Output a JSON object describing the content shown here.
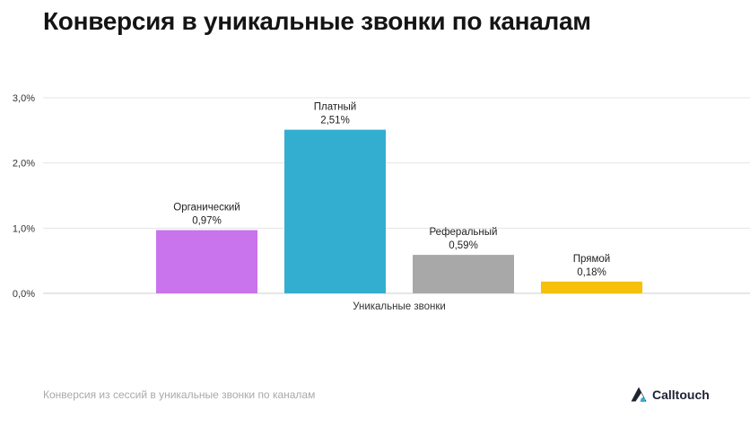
{
  "title": "Конверсия в уникальные звонки по каналам",
  "caption": "Конверсия из сессий в уникальные звонки по каналам",
  "brand": {
    "name": "Calltouch",
    "logo_icon": "calltouch-logo-icon"
  },
  "chart_data": {
    "type": "bar",
    "categories": [
      "Органический",
      "Платный",
      "Реферальный",
      "Прямой"
    ],
    "values": [
      0.97,
      2.51,
      0.59,
      0.18
    ],
    "value_labels": [
      "0,97%",
      "2,51%",
      "0,59%",
      "0,18%"
    ],
    "colors": [
      "#c973ec",
      "#33aed0",
      "#a8a8a8",
      "#f6c10a"
    ],
    "xlabel": "Уникальные звонки",
    "ylabel": "",
    "ylim": [
      0,
      3
    ],
    "yticks": [
      0,
      1,
      2,
      3
    ],
    "ytick_labels": [
      "0,0%",
      "1,0%",
      "2,0%",
      "3,0%"
    ],
    "grid": true,
    "legend": "none"
  }
}
